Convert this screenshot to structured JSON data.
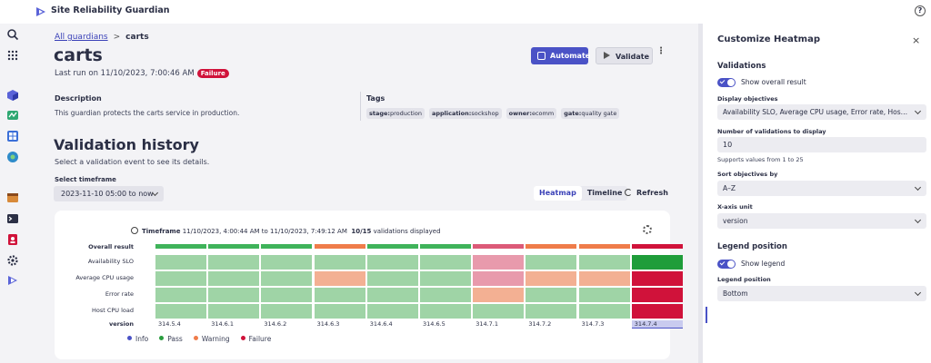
{
  "app": {
    "title": "Site Reliability Guardian",
    "help": "?"
  },
  "breadcrumb": {
    "parent": "All guardians",
    "separator": ">",
    "current": "carts"
  },
  "header": {
    "title": "carts",
    "last_run": "Last run on 11/10/2023, 7:00:46 AM",
    "status": "Failure",
    "automate_label": "Automate",
    "validate_label": "Validate",
    "more": "⋮"
  },
  "description": {
    "heading": "Description",
    "text": "This guardian protects the carts service in production."
  },
  "tags": {
    "heading": "Tags",
    "items": [
      {
        "key": "stage:",
        "value": "production"
      },
      {
        "key": "application:",
        "value": "sockshop"
      },
      {
        "key": "owner:",
        "value": "ecomm"
      },
      {
        "key": "gate:",
        "value": "quality gate"
      }
    ]
  },
  "history": {
    "title": "Validation history",
    "subtitle": "Select a validation event to see its details.",
    "timeframe_label": "Select timeframe",
    "timeframe_value": "2023-11-10 05:00 to now",
    "view_heatmap": "Heatmap",
    "view_timeline": "Timeline",
    "refresh": "Refresh"
  },
  "heatmap": {
    "timeframe_prefix": "Timeframe",
    "timeframe_range": "11/10/2023, 4:00:44 AM to 11/10/2023, 7:49:12 AM",
    "count": "10/15",
    "count_suffix": "validations displayed",
    "row_labels": [
      "Overall result",
      "Availability SLO",
      "Average CPU usage",
      "Error rate",
      "Host CPU load"
    ],
    "x_axis_label": "version",
    "versions": [
      "314.5.4",
      "314.6.1",
      "314.6.2",
      "314.6.3",
      "314.6.4",
      "314.6.5",
      "314.7.1",
      "314.7.2",
      "314.7.3",
      "314.7.4"
    ],
    "selected_version": "314.7.4",
    "overall": [
      "pass",
      "pass",
      "pass",
      "warning",
      "pass",
      "pass",
      "warning-red",
      "warning",
      "warning",
      "failure"
    ],
    "cells": [
      [
        "pass",
        "pass",
        "pass",
        "pass",
        "pass",
        "pass",
        "fail-soft",
        "pass",
        "pass",
        "pass-strong"
      ],
      [
        "pass",
        "pass",
        "pass",
        "warning",
        "pass",
        "pass",
        "fail-soft",
        "warning",
        "warning",
        "failure"
      ],
      [
        "pass",
        "pass",
        "pass",
        "pass",
        "pass",
        "pass",
        "warning",
        "pass",
        "pass",
        "failure"
      ],
      [
        "pass",
        "pass",
        "pass",
        "pass",
        "pass",
        "pass",
        "pass",
        "pass",
        "pass",
        "failure"
      ]
    ],
    "colors": {
      "pass": "#9fd4a6",
      "pass-strong": "#1f9d3a",
      "warning": "#f3b093",
      "fail-soft": "#e89aac",
      "failure": "#d0123a",
      "overall-pass": "#3fb35a",
      "overall-warning": "#ef7c4a",
      "overall-warning-red": "#dc5a78",
      "overall-failure": "#d0123a"
    },
    "legend": [
      {
        "label": "Info",
        "color": "#4a52c6"
      },
      {
        "label": "Pass",
        "color": "#2a9d3f"
      },
      {
        "label": "Warning",
        "color": "#ef7c4a"
      },
      {
        "label": "Failure",
        "color": "#d0123a"
      }
    ]
  },
  "panel": {
    "title": "Customize Heatmap",
    "close": "×",
    "validations_heading": "Validations",
    "show_overall": "Show overall result",
    "display_objectives_label": "Display objectives",
    "display_objectives_value": "Availability SLO, Average CPU usage, Error rate, Host CPU load",
    "num_label": "Number of validations to display",
    "num_value": "10",
    "num_hint": "Supports values from 1 to 25",
    "sort_label": "Sort objectives by",
    "sort_value": "A–Z",
    "xaxis_label": "X-axis unit",
    "xaxis_value": "version",
    "legend_heading": "Legend position",
    "show_legend": "Show legend",
    "legend_pos_label": "Legend position",
    "legend_pos_value": "Bottom"
  }
}
